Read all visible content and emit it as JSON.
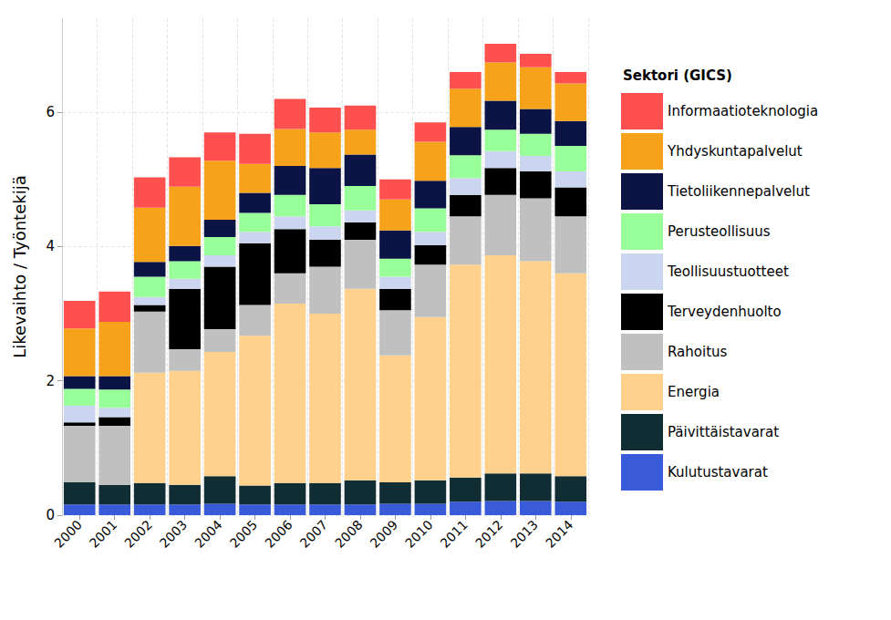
{
  "chart_data": {
    "type": "bar",
    "stacked": true,
    "grid": true,
    "legend": "right",
    "legend_title": "Sektori (GICS)",
    "y_label": "Likevaihto / Työntekijä",
    "categories": [
      "2000",
      "2001",
      "2002",
      "2003",
      "2004",
      "2005",
      "2006",
      "2007",
      "2008",
      "2009",
      "2010",
      "2011",
      "2012",
      "2013",
      "2014"
    ],
    "ylim": [
      0,
      7.4
    ],
    "yticks": [
      0,
      2,
      4,
      6
    ],
    "series": [
      {
        "name": "Kulutustavarat",
        "color": "#3a5bd9",
        "values": [
          0.16,
          0.16,
          0.16,
          0.16,
          0.17,
          0.16,
          0.16,
          0.16,
          0.16,
          0.17,
          0.17,
          0.2,
          0.21,
          0.21,
          0.2
        ]
      },
      {
        "name": "Päivittäistavarat",
        "color": "#0f2d33",
        "values": [
          0.33,
          0.29,
          0.32,
          0.29,
          0.41,
          0.28,
          0.32,
          0.32,
          0.36,
          0.32,
          0.35,
          0.36,
          0.41,
          0.41,
          0.38
        ]
      },
      {
        "name": "Energia",
        "color": "#ffd18c",
        "values": [
          0,
          0,
          1.64,
          1.7,
          1.85,
          2.23,
          2.67,
          2.52,
          2.85,
          1.89,
          2.43,
          3.17,
          3.25,
          3.16,
          3.02
        ]
      },
      {
        "name": "Rahoitus",
        "color": "#c0c0c0",
        "values": [
          0.84,
          0.88,
          0.91,
          0.32,
          0.34,
          0.46,
          0.45,
          0.7,
          0.73,
          0.67,
          0.78,
          0.72,
          0.9,
          0.94,
          0.85
        ]
      },
      {
        "name": "Terveydenhuolto",
        "color": "#000000",
        "values": [
          0.05,
          0.13,
          0.1,
          0.9,
          0.93,
          0.92,
          0.66,
          0.4,
          0.26,
          0.32,
          0.29,
          0.32,
          0.4,
          0.4,
          0.43
        ]
      },
      {
        "name": "Teollisuustuotteet",
        "color": "#ccd5f0",
        "values": [
          0.25,
          0.14,
          0.12,
          0.15,
          0.17,
          0.17,
          0.19,
          0.2,
          0.18,
          0.18,
          0.2,
          0.25,
          0.25,
          0.23,
          0.24
        ]
      },
      {
        "name": "Perusteollisuus",
        "color": "#99ff99",
        "values": [
          0.25,
          0.27,
          0.3,
          0.26,
          0.27,
          0.28,
          0.32,
          0.33,
          0.36,
          0.27,
          0.35,
          0.34,
          0.32,
          0.33,
          0.38
        ]
      },
      {
        "name": "Tietoliikennepalvelut",
        "color": "#0b1444",
        "values": [
          0.19,
          0.2,
          0.22,
          0.23,
          0.26,
          0.3,
          0.43,
          0.54,
          0.47,
          0.42,
          0.41,
          0.42,
          0.43,
          0.37,
          0.37
        ]
      },
      {
        "name": "Yhdyskuntapalvelut",
        "color": "#f7a21b",
        "values": [
          0.71,
          0.81,
          0.81,
          0.88,
          0.88,
          0.43,
          0.55,
          0.53,
          0.37,
          0.46,
          0.58,
          0.57,
          0.57,
          0.62,
          0.56
        ]
      },
      {
        "name": "Informaatioteknologia",
        "color": "#ff5050",
        "values": [
          0.41,
          0.45,
          0.45,
          0.44,
          0.42,
          0.45,
          0.45,
          0.37,
          0.36,
          0.3,
          0.29,
          0.25,
          0.28,
          0.2,
          0.17
        ]
      }
    ]
  }
}
